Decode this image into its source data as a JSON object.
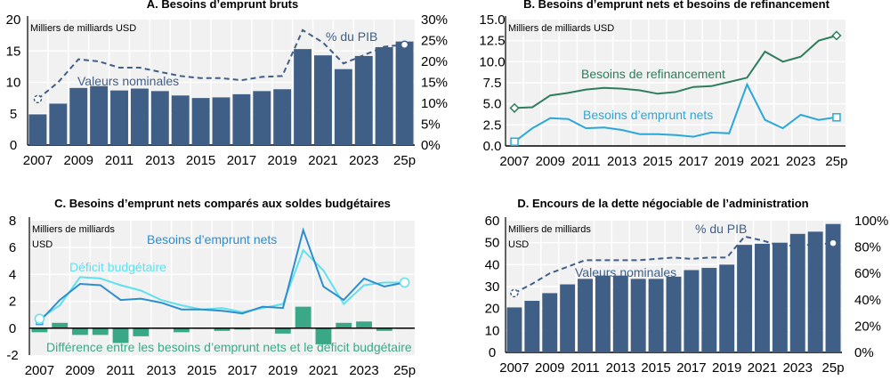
{
  "colors": {
    "bar_navy": "#3f5f86",
    "dashed_navy": "#3f5f86",
    "plot_bg": "#f1f1f1",
    "grid": "#ffffff",
    "refinancing_green": "#2e7d5b",
    "net_borrowing_blue": "#2ba8d8",
    "net_borrowing_dark_blue": "#2d8ecf",
    "deficit_cyan": "#5fe0ee",
    "difference_green": "#3aa886"
  },
  "chart_data": [
    {
      "id": "A",
      "type": "bar",
      "title": "A. Besoins d’emprunt bruts",
      "unit_label": "Milliers de milliards USD",
      "categories": [
        "2007",
        "2008",
        "2009",
        "2010",
        "2011",
        "2012",
        "2013",
        "2014",
        "2015",
        "2016",
        "2017",
        "2018",
        "2019",
        "2020",
        "2021",
        "2022",
        "2023",
        "2024",
        "25p"
      ],
      "xtick_labels": [
        "2007",
        "2009",
        "2011",
        "2013",
        "2015",
        "2017",
        "2019",
        "2021",
        "2023",
        "25p"
      ],
      "ylim": [
        0,
        20
      ],
      "yticks": [
        "0",
        "5",
        "10",
        "15",
        "20"
      ],
      "y2lim": [
        0,
        30
      ],
      "y2ticks": [
        "0%",
        "5%",
        "10%",
        "15%",
        "20%",
        "25%",
        "30%"
      ],
      "grid": true,
      "series": [
        {
          "name": "Valeurs nominales",
          "kind": "bar",
          "axis": "left",
          "values": [
            4.9,
            6.6,
            9.1,
            9.4,
            8.7,
            9.0,
            8.6,
            7.9,
            7.5,
            7.6,
            8.1,
            8.6,
            8.9,
            15.3,
            14.3,
            12.1,
            14.2,
            15.6,
            16.5
          ]
        },
        {
          "name": "% du PIB",
          "kind": "dashed-line",
          "axis": "right",
          "values": [
            11,
            15,
            20.5,
            20,
            18.5,
            18.5,
            17.5,
            16.5,
            16,
            16,
            15.5,
            16.3,
            16.5,
            27.5,
            24.5,
            19.5,
            21.5,
            23.5,
            24
          ]
        }
      ],
      "annotations": [
        "Valeurs nominales",
        "% du PIB"
      ]
    },
    {
      "id": "B",
      "type": "line",
      "title": "B. Besoins d’emprunt nets et besoins de refinancement",
      "unit_label": "Milliers de milliards USD",
      "categories": [
        "2007",
        "2008",
        "2009",
        "2010",
        "2011",
        "2012",
        "2013",
        "2014",
        "2015",
        "2016",
        "2017",
        "2018",
        "2019",
        "2020",
        "2021",
        "2022",
        "2023",
        "2024",
        "25p"
      ],
      "xtick_labels": [
        "2007",
        "2009",
        "2011",
        "2013",
        "2015",
        "2017",
        "2019",
        "2021",
        "2023",
        "25p"
      ],
      "ylim": [
        0,
        15
      ],
      "yticks": [
        "0.0",
        "2.5",
        "5.0",
        "7.5",
        "10.0",
        "12.5",
        "15.0"
      ],
      "grid": true,
      "series": [
        {
          "name": "Besoins de refinancement",
          "values": [
            4.5,
            4.6,
            6.0,
            6.3,
            6.7,
            6.9,
            6.8,
            6.6,
            6.2,
            6.4,
            7.0,
            7.1,
            7.6,
            8.1,
            11.2,
            10.0,
            10.6,
            12.5,
            13.1
          ]
        },
        {
          "name": "Besoins d’emprunt nets",
          "values": [
            0.5,
            2.1,
            3.3,
            3.2,
            2.1,
            2.2,
            1.9,
            1.4,
            1.4,
            1.3,
            1.1,
            1.6,
            1.5,
            7.3,
            3.1,
            2.1,
            3.7,
            3.1,
            3.4
          ]
        }
      ],
      "annotations": [
        "Besoins de refinancement",
        "Besoins d’emprunt nets"
      ]
    },
    {
      "id": "C",
      "type": "line",
      "title": "C. Besoins d’emprunt nets comparés aux soldes budgétaires",
      "unit_label": [
        "Milliers de milliards",
        "USD"
      ],
      "categories": [
        "2007",
        "2008",
        "2009",
        "2010",
        "2011",
        "2012",
        "2013",
        "2014",
        "2015",
        "2016",
        "2017",
        "2018",
        "2019",
        "2020",
        "2021",
        "2022",
        "2023",
        "2024",
        "25p"
      ],
      "xtick_labels": [
        "2007",
        "2009",
        "2011",
        "2013",
        "2015",
        "2017",
        "2019",
        "2021",
        "2023",
        "25p"
      ],
      "ylim": [
        -2,
        8
      ],
      "yticks": [
        "-2",
        "0",
        "2",
        "4",
        "6",
        "8"
      ],
      "grid": true,
      "series": [
        {
          "name": "Besoins d’emprunt nets",
          "kind": "line",
          "values": [
            0.5,
            2.1,
            3.3,
            3.2,
            2.1,
            2.2,
            1.9,
            1.4,
            1.4,
            1.3,
            1.1,
            1.6,
            1.5,
            7.3,
            3.1,
            2.1,
            3.7,
            3.1,
            3.4
          ]
        },
        {
          "name": "Déficit budgétaire",
          "kind": "line",
          "values": [
            0.7,
            1.7,
            3.8,
            3.7,
            3.2,
            2.8,
            2.1,
            1.7,
            1.4,
            1.5,
            1.2,
            1.5,
            1.8,
            5.8,
            4.3,
            1.8,
            3.2,
            3.4,
            3.4
          ]
        },
        {
          "name": "Différence entre les besoins d’emprunt nets et le déficit budgétaire",
          "kind": "bar",
          "values": [
            -0.3,
            0.4,
            -0.5,
            -0.5,
            -1.1,
            -0.6,
            -0.05,
            -0.3,
            0.0,
            -0.2,
            -0.1,
            0.05,
            -0.4,
            1.6,
            -1.2,
            0.4,
            0.5,
            -0.2,
            0.0
          ]
        }
      ],
      "annotations": [
        "Besoins d’emprunt nets",
        "Déficit budgétaire",
        "Différence entre les besoins d’emprunt nets et le déficit budgétaire"
      ]
    },
    {
      "id": "D",
      "type": "bar",
      "title": "D. Encours de la dette négociable de l’administration",
      "unit_label": [
        "Milliers de milliards",
        "USD"
      ],
      "categories": [
        "2007",
        "2008",
        "2009",
        "2010",
        "2011",
        "2012",
        "2013",
        "2014",
        "2015",
        "2016",
        "2017",
        "2018",
        "2019",
        "2020",
        "2021",
        "2022",
        "2023",
        "2024",
        "25p"
      ],
      "xtick_labels": [
        "2007",
        "2009",
        "2011",
        "2013",
        "2015",
        "2017",
        "2019",
        "2021",
        "2023",
        "25p"
      ],
      "ylim": [
        0,
        60
      ],
      "yticks": [
        "0",
        "10",
        "20",
        "30",
        "40",
        "50",
        "60"
      ],
      "y2lim": [
        0,
        100
      ],
      "y2ticks": [
        "0%",
        "20%",
        "40%",
        "60%",
        "80%",
        "100%"
      ],
      "grid": true,
      "series": [
        {
          "name": "Valeurs nominales",
          "kind": "bar",
          "axis": "left",
          "values": [
            20.5,
            23.5,
            27,
            31,
            33.5,
            35,
            35,
            33.5,
            33.5,
            34.5,
            37.5,
            38.5,
            40,
            49,
            49.5,
            50,
            54,
            55,
            58.5
          ]
        },
        {
          "name": "% du PIB",
          "kind": "dashed-line",
          "axis": "right",
          "values": [
            45,
            52,
            60,
            65,
            70,
            70,
            70,
            70,
            71,
            72,
            71,
            72,
            72,
            88,
            85,
            81,
            81,
            82,
            83
          ]
        }
      ],
      "annotations": [
        "Valeurs nominales",
        "% du PIB"
      ]
    }
  ]
}
